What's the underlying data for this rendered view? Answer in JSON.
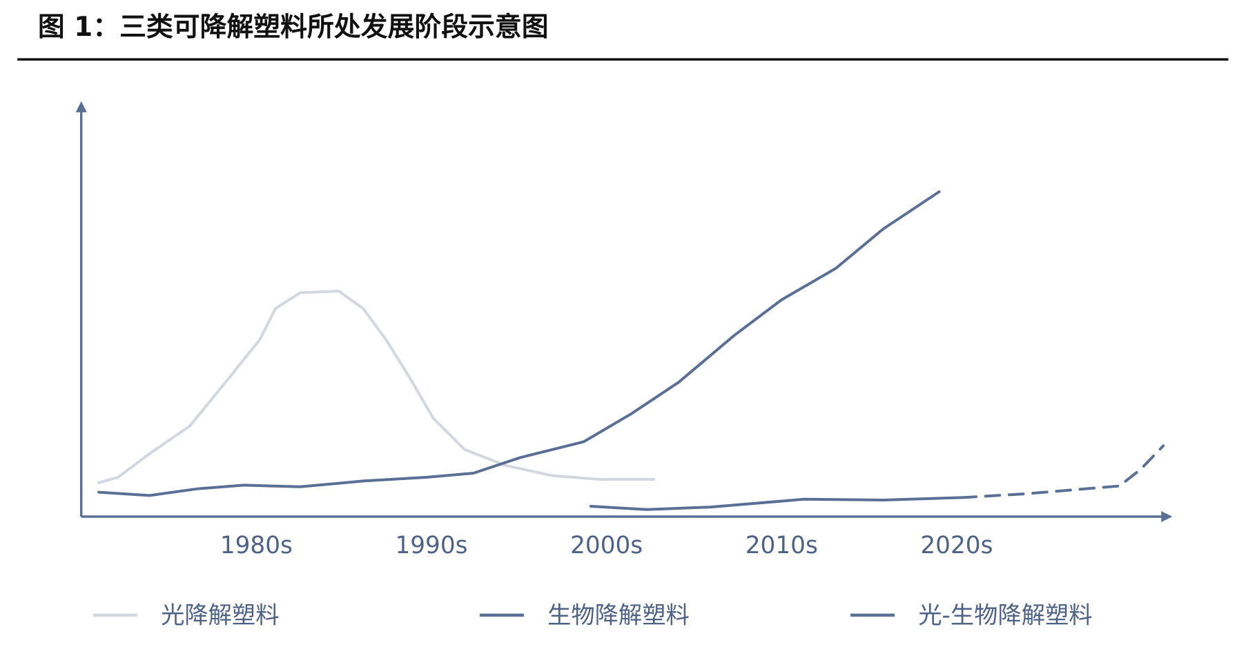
{
  "chart_data": {
    "type": "line",
    "title": "图 1：三类可降解塑料所处发展阶段示意图",
    "xlim": [
      1970,
      2032
    ],
    "ylim": [
      0,
      100
    ],
    "xticks": [
      {
        "value": 1980,
        "label": "1980s"
      },
      {
        "value": 1990,
        "label": "1990s"
      },
      {
        "value": 2000,
        "label": "2000s"
      },
      {
        "value": 2010,
        "label": "2010s"
      },
      {
        "value": 2020,
        "label": "2020s"
      }
    ],
    "series": [
      {
        "name": "光降解塑料",
        "color": "#d3d7df",
        "x": [
          1971.0,
          1972.1,
          1973.9,
          1976.2,
          1978.4,
          1980.2,
          1981.1,
          1982.5,
          1984.7,
          1986.1,
          1987.4,
          1988.8,
          1990.1,
          1991.9,
          1994.2,
          1996.9,
          1999.6,
          2002.7
        ],
        "values": [
          8.2,
          9.5,
          15.2,
          21.9,
          33.3,
          42.8,
          50.3,
          54.1,
          54.5,
          50.3,
          42.8,
          33.3,
          23.8,
          16.2,
          12.4,
          9.9,
          9.0,
          9.0
        ]
      },
      {
        "name": "生物降解塑料",
        "color": "#5a6f96",
        "x": [
          1971.0,
          1973.9,
          1976.6,
          1979.3,
          1982.5,
          1986.1,
          1989.7,
          1992.4,
          1995.1,
          1998.7,
          2001.4,
          2004.1,
          2007.3,
          2010.0,
          2013.1,
          2015.8,
          2019.0
        ],
        "values": [
          5.9,
          5.1,
          6.7,
          7.6,
          7.2,
          8.6,
          9.5,
          10.5,
          14.3,
          18.1,
          24.8,
          32.4,
          43.8,
          52.4,
          60.0,
          69.5,
          78.5
        ]
      },
      {
        "name": "光-生物降解塑料",
        "color": "#5a6f96",
        "dashed_from": 2020.3,
        "x": [
          1999.1,
          2002.3,
          2005.9,
          2011.3,
          2015.8,
          2020.3,
          2023.9,
          2029.3,
          2030.5,
          2031.8
        ],
        "values": [
          2.5,
          1.7,
          2.3,
          4.2,
          4.0,
          4.6,
          5.5,
          7.4,
          11.4,
          17.1
        ]
      }
    ]
  }
}
